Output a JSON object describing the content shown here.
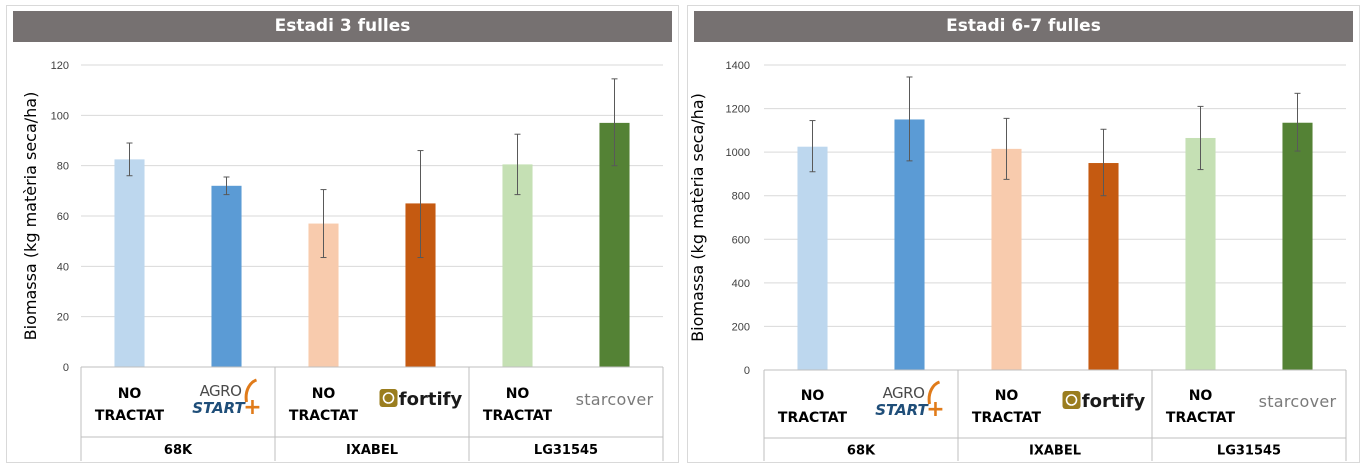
{
  "chart_data": [
    {
      "type": "bar",
      "title": "Estadi 3 fulles",
      "ylabel": "Biomassa (kg matèria seca/ha)",
      "ylim": [
        0,
        120
      ],
      "yticks": [
        0,
        20,
        40,
        60,
        80,
        100,
        120
      ],
      "grid": true,
      "groups": [
        "68K",
        "IXABEL",
        "LG31545"
      ],
      "categories": [
        {
          "group": "68K",
          "label_lines": [
            "NO",
            "TRACTAT"
          ],
          "logo": null
        },
        {
          "group": "68K",
          "label_lines": [],
          "logo": "agrostart"
        },
        {
          "group": "IXABEL",
          "label_lines": [
            "NO",
            "TRACTAT"
          ],
          "logo": null
        },
        {
          "group": "IXABEL",
          "label_lines": [],
          "logo": "fortify"
        },
        {
          "group": "LG31545",
          "label_lines": [
            "NO",
            "TRACTAT"
          ],
          "logo": null
        },
        {
          "group": "LG31545",
          "label_lines": [],
          "logo": "starcover"
        }
      ],
      "values": [
        82.5,
        72,
        57,
        65,
        80.5,
        97
      ],
      "error_low": [
        76,
        68.5,
        43.5,
        43.5,
        68.5,
        80
      ],
      "error_high": [
        89,
        75.5,
        70.5,
        86,
        92.5,
        114.5
      ],
      "bar_colors": [
        "#BDD7EE",
        "#5B9BD5",
        "#F8CBAD",
        "#C55A11",
        "#C5E0B4",
        "#548235"
      ]
    },
    {
      "type": "bar",
      "title": "Estadi 6-7 fulles",
      "ylabel": "Biomassa (kg matèria seca/ha)",
      "ylim": [
        0,
        1400
      ],
      "yticks": [
        0,
        200,
        400,
        600,
        800,
        1000,
        1200,
        1400
      ],
      "grid": true,
      "groups": [
        "68K",
        "IXABEL",
        "LG31545"
      ],
      "categories": [
        {
          "group": "68K",
          "label_lines": [
            "NO",
            "TRACTAT"
          ],
          "logo": null
        },
        {
          "group": "68K",
          "label_lines": [],
          "logo": "agrostart"
        },
        {
          "group": "IXABEL",
          "label_lines": [
            "NO",
            "TRACTAT"
          ],
          "logo": null
        },
        {
          "group": "IXABEL",
          "label_lines": [],
          "logo": "fortify"
        },
        {
          "group": "LG31545",
          "label_lines": [
            "NO",
            "TRACTAT"
          ],
          "logo": null
        },
        {
          "group": "LG31545",
          "label_lines": [],
          "logo": "starcover"
        }
      ],
      "values": [
        1025,
        1150,
        1015,
        950,
        1065,
        1135
      ],
      "error_low": [
        910,
        960,
        875,
        800,
        920,
        1005
      ],
      "error_high": [
        1145,
        1345,
        1155,
        1105,
        1210,
        1270
      ],
      "bar_colors": [
        "#BDD7EE",
        "#5B9BD5",
        "#F8CBAD",
        "#C55A11",
        "#C5E0B4",
        "#548235"
      ]
    }
  ],
  "logos": {
    "agrostart": {
      "top": "AGRO",
      "bottom": "START"
    },
    "fortify": {
      "text": "fortify"
    },
    "starcover": {
      "text": "starcover"
    }
  }
}
